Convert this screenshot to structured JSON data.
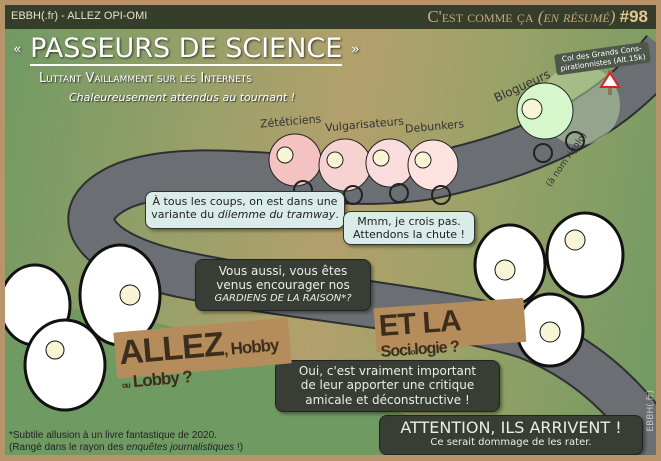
{
  "header": {
    "site": "EBBH(.fr) - ALLEZ OPI-OMI",
    "strip_name": "C'est comme ça",
    "strip_sub": "(en résumé)",
    "strip_number": "#98"
  },
  "title": {
    "open_quote": "«",
    "main": "PASSEURS DE SCIENCE",
    "close_quote": "»",
    "subtitle": "Luttant Vaillamment sur les Internets",
    "tagline": "Chaleureusement attendus au tournant !"
  },
  "road_sign": {
    "text": "Col des Grands Cons-pirationnistes (Alt.15k)",
    "icon": "warning-triangle-icon"
  },
  "cyclist_groups": [
    "Zététiciens",
    "Vulgarisateurs",
    "Debunkers",
    "Blogueurs"
  ],
  "blogger_note": "(à nom rigolo)",
  "bubbles": {
    "cyclist1": {
      "text": "À tous les coups, on est dans une variante du ",
      "italic": "dilemme du tramway",
      "end": "."
    },
    "cyclist2": {
      "line1": "Mmm, je crois pas.",
      "line2": "Attendons la chute !"
    },
    "crowd1": {
      "line1": "Vous aussi, vous êtes",
      "line2": "venus encourager nos",
      "line3": "GARDIENS DE LA RAISON*?"
    },
    "crowd2": {
      "line1": "Oui, c'est vraiment important",
      "line2": "de leur apporter une critique",
      "line3": "amicale et déconstructive !"
    },
    "crowd3": {
      "line1": "ATTENTION, ILS ARRIVENT !",
      "line2": "Ce serait dommage de les rater."
    }
  },
  "signs": {
    "left": {
      "big": "ALLEZ",
      "small1": "Hobby",
      "tiny": "ou",
      "small2": "Lobby ?"
    },
    "right": {
      "big": "ET LA",
      "small1": "Soci",
      "tiny": "o",
      "small2": "logie ?"
    }
  },
  "footnote": {
    "line1": "*Subtile allusion à un livre fantastique de 2020.",
    "line2_a": "(Rangé dans le rayon des ",
    "line2_italic": "enquêtes journalistiques",
    "line2_b": " !)"
  },
  "credit": "EBBH(.fr)",
  "colors": {
    "frame": "#b8946a",
    "topbar": "#353d2b",
    "road": "#6b6f73",
    "dark_bubble": "#383e36",
    "light_bubble": "#d9ece7",
    "cardboard": "#b58d5c"
  }
}
